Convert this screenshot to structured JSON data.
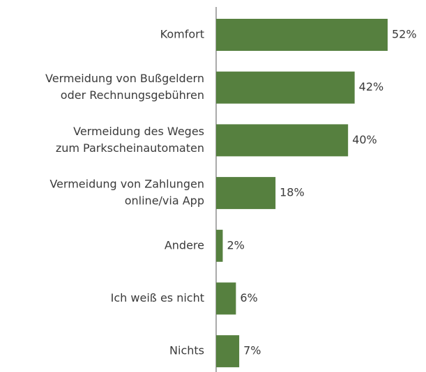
{
  "chart_data": {
    "type": "bar",
    "orientation": "horizontal",
    "categories": [
      [
        "Komfort"
      ],
      [
        "Vermeidung von Bußgeldern",
        "oder Rechnungsgebühren"
      ],
      [
        "Vermeidung des Weges",
        "zum Parkscheinautomaten"
      ],
      [
        "Vermeidung von Zahlungen",
        "online/via App"
      ],
      [
        "Andere"
      ],
      [
        "Ich weiß es nicht"
      ],
      [
        "Nichts"
      ]
    ],
    "values": [
      52,
      42,
      40,
      18,
      2,
      6,
      7
    ],
    "value_labels": [
      "52%",
      "42%",
      "40%",
      "18%",
      "2%",
      "6%",
      "7%"
    ],
    "color": "#56803f"
  }
}
